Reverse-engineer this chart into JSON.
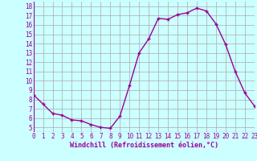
{
  "x": [
    0,
    1,
    2,
    3,
    4,
    5,
    6,
    7,
    8,
    9,
    10,
    11,
    12,
    13,
    14,
    15,
    16,
    17,
    18,
    19,
    20,
    21,
    22,
    23
  ],
  "y": [
    8.5,
    7.5,
    6.5,
    6.3,
    5.8,
    5.7,
    5.3,
    5.0,
    4.9,
    6.2,
    9.5,
    13.0,
    14.5,
    16.7,
    16.6,
    17.1,
    17.3,
    17.8,
    17.5,
    16.1,
    13.9,
    11.0,
    8.7,
    7.3
  ],
  "line_color": "#990099",
  "marker": "+",
  "marker_size": 3.5,
  "marker_edge_width": 1.0,
  "bg_color": "#ccffff",
  "grid_color": "#aaaaaa",
  "xlabel": "Windchill (Refroidissement éolien,°C)",
  "xlabel_color": "#990099",
  "tick_color": "#990099",
  "ylim": [
    4.5,
    18.5
  ],
  "xlim": [
    0,
    23
  ],
  "yticks": [
    5,
    6,
    7,
    8,
    9,
    10,
    11,
    12,
    13,
    14,
    15,
    16,
    17,
    18
  ],
  "xticks": [
    0,
    1,
    2,
    3,
    4,
    5,
    6,
    7,
    8,
    9,
    10,
    11,
    12,
    13,
    14,
    15,
    16,
    17,
    18,
    19,
    20,
    21,
    22,
    23
  ],
  "line_width": 1.0,
  "tick_fontsize": 5.5,
  "xlabel_fontsize": 6.0
}
